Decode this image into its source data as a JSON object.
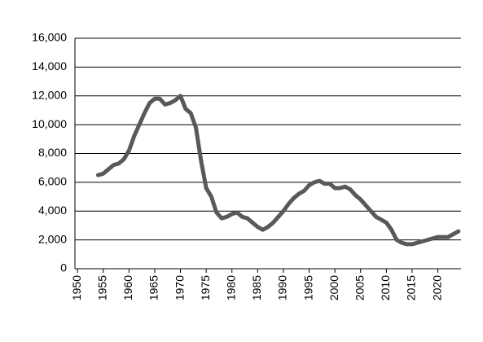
{
  "chart_data": {
    "type": "line",
    "x": [
      1954,
      1955,
      1956,
      1957,
      1958,
      1959,
      1960,
      1961,
      1962,
      1963,
      1964,
      1965,
      1966,
      1967,
      1968,
      1969,
      1970,
      1971,
      1972,
      1973,
      1974,
      1975,
      1976,
      1977,
      1978,
      1979,
      1980,
      1981,
      1982,
      1983,
      1984,
      1985,
      1986,
      1987,
      1988,
      1989,
      1990,
      1991,
      1992,
      1993,
      1994,
      1995,
      1996,
      1997,
      1998,
      1999,
      2000,
      2001,
      2002,
      2003,
      2004,
      2005,
      2006,
      2007,
      2008,
      2009,
      2010,
      2011,
      2012,
      2013,
      2014,
      2015,
      2016,
      2017,
      2018,
      2019,
      2020,
      2021,
      2022,
      2023,
      2024
    ],
    "series": [
      {
        "color": "#595959",
        "values": [
          6500,
          6600,
          6900,
          7200,
          7300,
          7600,
          8200,
          9200,
          10000,
          10800,
          11500,
          11800,
          11800,
          11400,
          11500,
          11700,
          12000,
          11100,
          10800,
          9800,
          7500,
          5600,
          5000,
          3900,
          3500,
          3600,
          3800,
          3900,
          3600,
          3500,
          3200,
          2900,
          2700,
          2900,
          3200,
          3600,
          4000,
          4500,
          4900,
          5200,
          5400,
          5800,
          6000,
          6100,
          5900,
          5900,
          5600,
          5600,
          5700,
          5500,
          5100,
          4800,
          4400,
          4000,
          3600,
          3400,
          3200,
          2700,
          2000,
          1800,
          1700,
          1700,
          1800,
          1900,
          2000,
          2100,
          2200,
          2200,
          2200,
          2400,
          2600
        ]
      }
    ],
    "xlim": [
      1949.5,
      2024.5
    ],
    "xticks": [
      1950,
      1955,
      1960,
      1965,
      1970,
      1975,
      1980,
      1985,
      1990,
      1995,
      2000,
      2005,
      2010,
      2015,
      2020
    ],
    "ylim": [
      0,
      16000
    ],
    "yticks": [
      0,
      {
        "value": 2000,
        "label": "2,000"
      },
      {
        "value": 4000,
        "label": "4,000"
      },
      {
        "value": 6000,
        "label": "6,000"
      },
      {
        "value": 8000,
        "label": "8,000"
      },
      {
        "value": 10000,
        "label": "10,000"
      },
      {
        "value": 12000,
        "label": "12,000"
      },
      {
        "value": 14000,
        "label": "14,000"
      },
      {
        "value": 16000,
        "label": "16,000"
      }
    ],
    "grid": true
  }
}
